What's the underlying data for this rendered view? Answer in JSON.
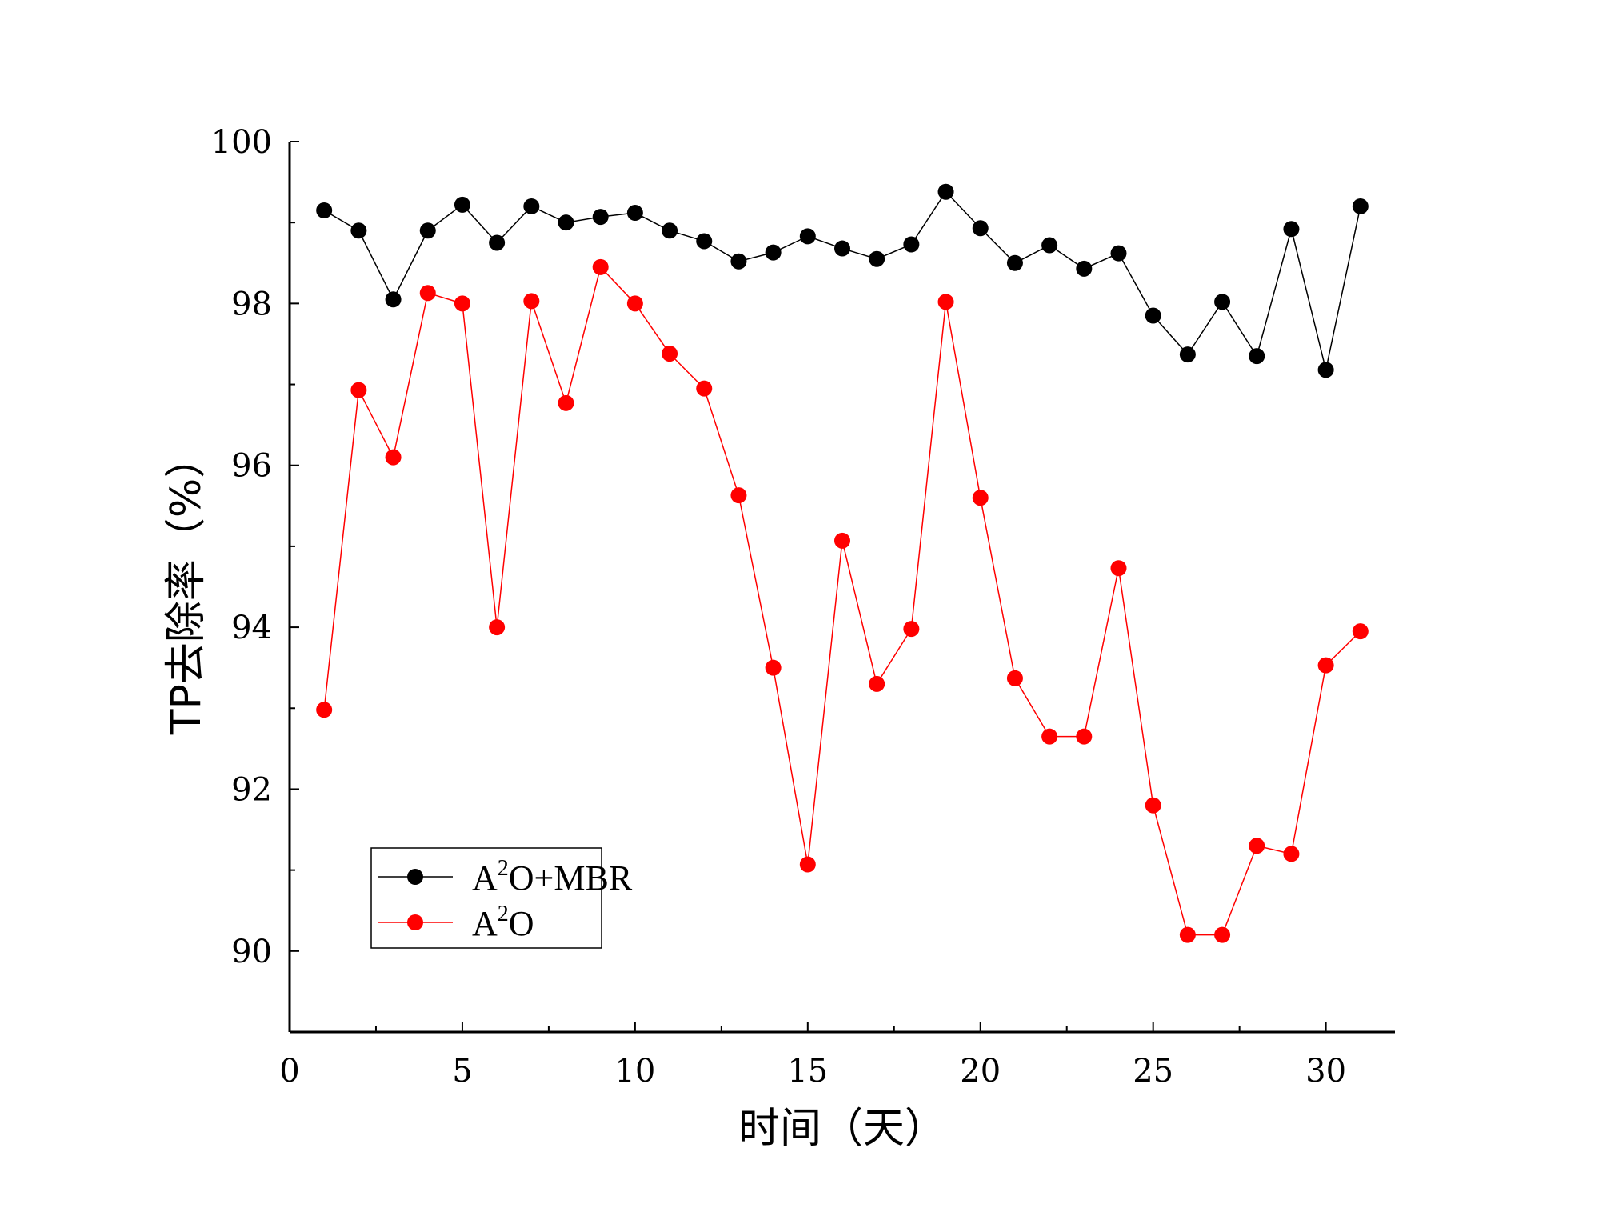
{
  "chart_data": {
    "type": "line",
    "title": "",
    "xlabel": "时间（天）",
    "ylabel": "TP去除率（%）",
    "xlim": [
      0,
      32
    ],
    "ylim": [
      89,
      100
    ],
    "xticks": [
      0,
      5,
      10,
      15,
      20,
      25,
      30
    ],
    "xtick_labels": [
      "0",
      "5",
      "10",
      "15",
      "20",
      "25",
      "30"
    ],
    "yticks": [
      90,
      92,
      94,
      96,
      98,
      100
    ],
    "ytick_labels": [
      "90",
      "92",
      "94",
      "96",
      "98",
      "100"
    ],
    "grid": false,
    "legend_position": "bottom-left",
    "x": [
      1,
      2,
      3,
      4,
      5,
      6,
      7,
      8,
      9,
      10,
      11,
      12,
      13,
      14,
      15,
      16,
      17,
      18,
      19,
      20,
      21,
      22,
      23,
      24,
      25,
      26,
      27,
      28,
      29,
      30,
      31
    ],
    "series": [
      {
        "name": "A2O+MBR",
        "legend_base": "A",
        "legend_sup": "2",
        "legend_rest": "O+MBR",
        "color": "#000000",
        "values": [
          99.15,
          98.9,
          98.05,
          98.9,
          99.22,
          98.75,
          99.2,
          99.0,
          99.07,
          99.12,
          98.9,
          98.77,
          98.52,
          98.63,
          98.83,
          98.68,
          98.55,
          98.73,
          99.38,
          98.93,
          98.5,
          98.72,
          98.43,
          98.62,
          97.85,
          97.37,
          98.02,
          97.35,
          98.92,
          97.18,
          99.2
        ]
      },
      {
        "name": "A2O",
        "legend_base": "A",
        "legend_sup": "2",
        "legend_rest": "O",
        "color": "#ff0000",
        "values": [
          92.98,
          96.93,
          96.1,
          98.13,
          98.0,
          94.0,
          98.03,
          96.77,
          98.45,
          98.0,
          97.38,
          96.95,
          95.63,
          93.5,
          91.07,
          95.07,
          93.3,
          93.98,
          98.02,
          95.6,
          93.37,
          92.65,
          92.65,
          94.73,
          91.8,
          90.2,
          90.2,
          91.3,
          91.2,
          93.53,
          93.95
        ]
      }
    ]
  }
}
